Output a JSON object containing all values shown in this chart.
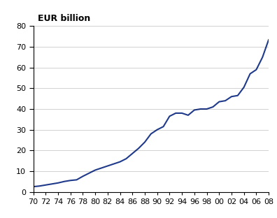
{
  "years": [
    1970,
    1971,
    1972,
    1973,
    1974,
    1975,
    1976,
    1977,
    1978,
    1979,
    1980,
    1981,
    1982,
    1983,
    1984,
    1985,
    1986,
    1987,
    1988,
    1989,
    1990,
    1991,
    1992,
    1993,
    1994,
    1995,
    1996,
    1997,
    1998,
    1999,
    2000,
    2001,
    2002,
    2003,
    2004,
    2005,
    2006,
    2007,
    2008
  ],
  "values": [
    2.5,
    2.8,
    3.3,
    3.8,
    4.3,
    5.0,
    5.5,
    5.8,
    7.5,
    9.0,
    10.5,
    11.5,
    12.5,
    13.5,
    14.5,
    16.0,
    18.5,
    21.0,
    24.0,
    28.0,
    30.0,
    31.5,
    36.5,
    38.0,
    38.0,
    37.0,
    39.5,
    40.0,
    40.0,
    41.0,
    43.5,
    44.0,
    46.0,
    46.5,
    50.5,
    57.0,
    59.0,
    65.0,
    73.5
  ],
  "line_color": "#1F3A8A",
  "line_width": 1.5,
  "ylabel": "EUR billion",
  "ylim": [
    0,
    80
  ],
  "yticks": [
    0,
    10,
    20,
    30,
    40,
    50,
    60,
    70,
    80
  ],
  "xtick_labels": [
    "70",
    "72",
    "74",
    "76",
    "78",
    "80",
    "82",
    "84",
    "86",
    "88",
    "90",
    "92",
    "94",
    "96",
    "98",
    "00",
    "02",
    "04",
    "06",
    "08"
  ],
  "xtick_years": [
    1970,
    1972,
    1974,
    1976,
    1978,
    1980,
    1982,
    1984,
    1986,
    1988,
    1990,
    1992,
    1994,
    1996,
    1998,
    2000,
    2002,
    2004,
    2006,
    2008
  ],
  "bg_color": "#ffffff",
  "grid_color": "#000000",
  "grid_alpha": 0.25,
  "grid_linewidth": 0.5,
  "title_fontsize": 9,
  "tick_fontsize": 8
}
